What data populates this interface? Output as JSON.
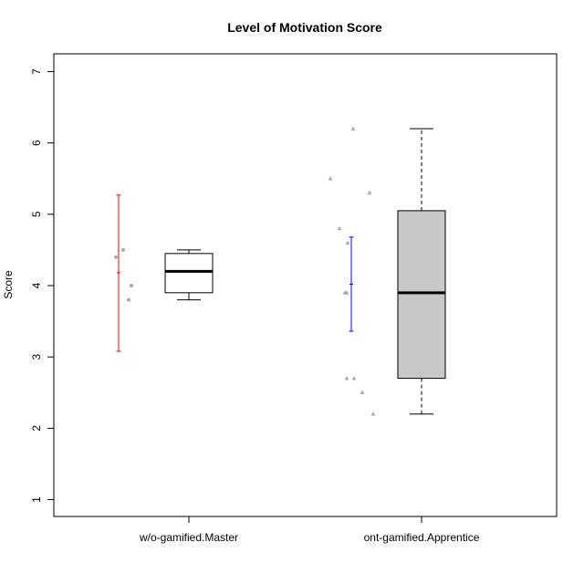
{
  "chart_data": {
    "type": "box",
    "title": "Level of Motivation Score",
    "xlabel": "",
    "ylabel": "Score",
    "ylim": [
      0.75,
      7.25
    ],
    "yticks": [
      1,
      2,
      3,
      4,
      5,
      6,
      7
    ],
    "categories": [
      "w/o-gamified.Master",
      "ont-gamified.Apprentice"
    ],
    "groups": [
      {
        "category": "w/o-gamified.Master",
        "points": [
          4.4,
          4.5,
          4.0,
          3.8
        ],
        "point_shape": "circle",
        "errorbar": {
          "mean": 4.18,
          "low": 3.08,
          "high": 5.27,
          "color": "#ff0000"
        },
        "box": {
          "min": 3.8,
          "q1": 3.9,
          "median": 4.2,
          "q3": 4.45,
          "max": 4.5,
          "fill": "#ffffff"
        }
      },
      {
        "category": "ont-gamified.Apprentice",
        "points": [
          5.5,
          6.2,
          5.3,
          4.8,
          4.6,
          3.9,
          3.9,
          2.7,
          2.7,
          2.5,
          2.2
        ],
        "point_shape": "triangle",
        "errorbar": {
          "mean": 4.02,
          "low": 3.36,
          "high": 4.68,
          "color": "#0000ff"
        },
        "box": {
          "min": 2.2,
          "q1": 2.7,
          "median": 3.9,
          "q3": 5.05,
          "max": 6.2,
          "fill": "#c8c8c8"
        }
      }
    ],
    "grid": false,
    "legend": "none",
    "point_color": "#a9a9a9"
  }
}
